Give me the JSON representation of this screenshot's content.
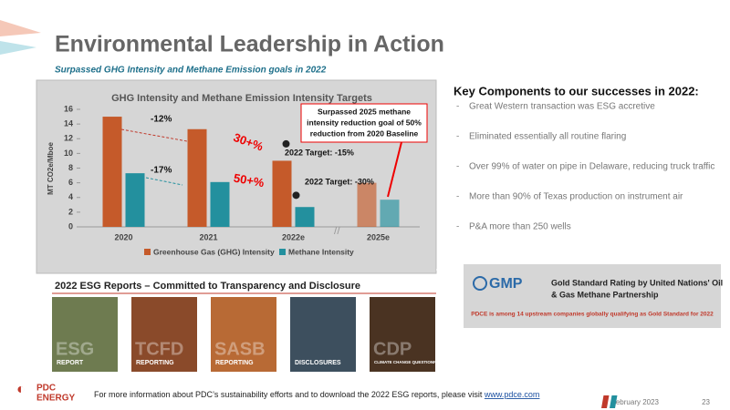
{
  "header": {
    "title": "Environmental Leadership in Action",
    "subtitle": "Surpassed GHG Intensity and Methane Emission goals in 2022"
  },
  "chart_data": {
    "type": "bar",
    "title": "GHG Intensity and Methane Emission Intensity Targets",
    "y_label": "MT CO2e/Mboe",
    "categories": [
      "2020",
      "2021",
      "2022e",
      "2025e"
    ],
    "series": [
      {
        "name": "Greenhouse Gas (GHG) Intensity",
        "color": "#c55a2a",
        "values": [
          15,
          13.3,
          9,
          6
        ]
      },
      {
        "name": "Methane Intensity",
        "color": "#23909e",
        "values": [
          7.3,
          6.1,
          2.7,
          3.7
        ]
      }
    ],
    "ylim": [
      0,
      16
    ],
    "yticks": [
      0,
      2,
      4,
      6,
      8,
      10,
      12,
      14,
      16
    ],
    "annotations": [
      "-12%",
      "-17%",
      "30+%",
      "50+%"
    ],
    "targets": [
      {
        "label": "2022 Target: -15%",
        "value": 11.3
      },
      {
        "label": "2022 Target: -30%",
        "value": 4.3
      }
    ],
    "callout": [
      "Surpassed 2025 methane",
      "intensity reduction goal of 50%",
      "reduction from 2020 Baseline"
    ],
    "legend": "bottom"
  },
  "key_components": {
    "title": "Key Components to our successes in 2022:",
    "items": [
      "Great Western transaction was ESG accretive",
      "Eliminated essentially all routine flaring",
      "Over 99% of water on pipe in Delaware, reducing truck traffic",
      "More than 90% of Texas production on instrument air",
      "P&A more than 250 wells"
    ]
  },
  "gmp": {
    "logo": "GMP",
    "title": [
      "Gold Standard Rating by United Nations' Oil",
      "& Gas Methane Partnership"
    ],
    "note": "PDCE is among 14 upstream companies globally qualifying as Gold Standard for 2022"
  },
  "reports": {
    "title": "2022 ESG Reports – Committed to Transparency and Disclosure",
    "cards": [
      {
        "big": "ESG",
        "label": "REPORT"
      },
      {
        "big": "TCFD",
        "label": "REPORTING"
      },
      {
        "big": "SASB",
        "label": "REPORTING"
      },
      {
        "label": "DISCLOSURES"
      },
      {
        "big": "CDP",
        "label": "CLIMATE CHANGE QUESTIONNAIRE"
      }
    ]
  },
  "footer": {
    "logo": [
      "PDC",
      "ENERGY"
    ],
    "text": "For more information about PDC’s sustainability efforts and to download the 2022 ESG reports, please visit ",
    "link": "www.pdce.com",
    "date": "February 2023",
    "page": "23"
  }
}
